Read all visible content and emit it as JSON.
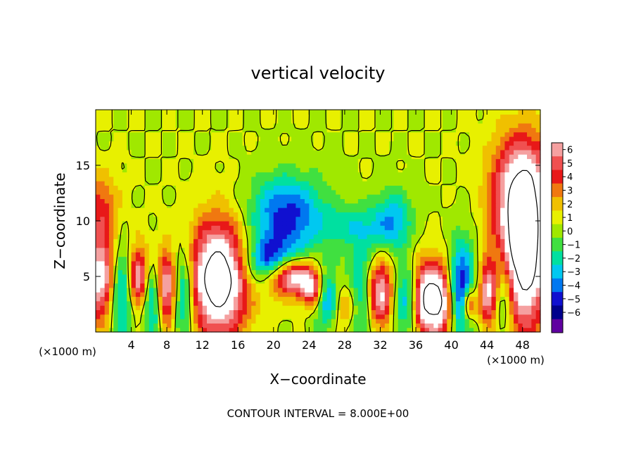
{
  "chart_data": {
    "type": "heatmap",
    "title": "vertical velocity",
    "xlabel": "X−coordinate",
    "ylabel": "Z−coordinate",
    "x_unit_left": "(×1000 m)",
    "x_unit_right": "(×1000 m)",
    "footer": "CONTOUR INTERVAL = 8.000E+00",
    "xlim": [
      0,
      50
    ],
    "ylim": [
      0,
      20
    ],
    "x_ticks": [
      4,
      8,
      12,
      16,
      20,
      24,
      28,
      32,
      36,
      40,
      44,
      48
    ],
    "y_ticks": [
      5,
      10,
      15
    ],
    "colorbar": {
      "levels": [
        6,
        5,
        4,
        3,
        2,
        1,
        0,
        -1,
        -2,
        -3,
        -4,
        -5,
        -6
      ],
      "labels": [
        "6",
        "5",
        "4",
        "3",
        "2",
        "1",
        "0",
        "−1",
        "−2",
        "−3",
        "−4",
        "−5",
        "−6"
      ],
      "colors": [
        "#f5a0a0",
        "#f05050",
        "#e81818",
        "#f07810",
        "#f0c000",
        "#e8f000",
        "#a0e800",
        "#40e040",
        "#00e0a0",
        "#00c8f0",
        "#0078f0",
        "#1010d0",
        "#00008c",
        "#6000a0"
      ]
    },
    "features": [
      {
        "x": 0.8,
        "z": 5.0,
        "sign": 1,
        "amp": 7.5,
        "sx": 1.4,
        "sz": 3.0
      },
      {
        "x": 2.8,
        "z": 4.0,
        "sign": -1,
        "amp": 6.0,
        "sx": 1.1,
        "sz": 3.0
      },
      {
        "x": 4.8,
        "z": 4.8,
        "sign": 1,
        "amp": 7.0,
        "sx": 0.9,
        "sz": 2.2
      },
      {
        "x": 6.5,
        "z": 3.0,
        "sign": -1,
        "amp": 6.0,
        "sx": 0.9,
        "sz": 2.5
      },
      {
        "x": 7.8,
        "z": 3.8,
        "sign": 1,
        "amp": 7.5,
        "sx": 0.9,
        "sz": 2.5
      },
      {
        "x": 9.8,
        "z": 3.5,
        "sign": -1,
        "amp": 5.0,
        "sx": 0.9,
        "sz": 3.0
      },
      {
        "x": 13.8,
        "z": 4.8,
        "sign": 1,
        "amp": 10.0,
        "sx": 2.3,
        "sz": 3.6
      },
      {
        "x": 19.5,
        "z": 6.3,
        "sign": -1,
        "amp": 5.5,
        "sx": 2.0,
        "sz": 1.5
      },
      {
        "x": 21.8,
        "z": 5.0,
        "sign": 1,
        "amp": 8.0,
        "sx": 1.8,
        "sz": 1.2
      },
      {
        "x": 21.5,
        "z": 10.5,
        "sign": -1,
        "amp": 5.5,
        "sx": 3.0,
        "sz": 2.5
      },
      {
        "x": 24.5,
        "z": 3.8,
        "sign": 1,
        "amp": 7.0,
        "sx": 0.9,
        "sz": 1.3
      },
      {
        "x": 25.8,
        "z": 3.2,
        "sign": -1,
        "amp": 5.5,
        "sx": 1.2,
        "sz": 1.8
      },
      {
        "x": 28.0,
        "z": 2.5,
        "sign": 1,
        "amp": 3.5,
        "sx": 1.0,
        "sz": 1.5
      },
      {
        "x": 30.2,
        "z": 3.5,
        "sign": -1,
        "amp": 5.5,
        "sx": 1.2,
        "sz": 2.8
      },
      {
        "x": 31.8,
        "z": 3.5,
        "sign": 1,
        "amp": 8.5,
        "sx": 1.3,
        "sz": 2.2
      },
      {
        "x": 34.5,
        "z": 3.0,
        "sign": -1,
        "amp": 4.0,
        "sx": 1.2,
        "sz": 2.2
      },
      {
        "x": 37.0,
        "z": 3.0,
        "sign": 1,
        "amp": 8.0,
        "sx": 0.9,
        "sz": 2.3
      },
      {
        "x": 38.8,
        "z": 2.8,
        "sign": 1,
        "amp": 8.0,
        "sx": 0.9,
        "sz": 2.3
      },
      {
        "x": 41.2,
        "z": 4.0,
        "sign": -1,
        "amp": 6.0,
        "sx": 1.1,
        "sz": 3.0
      },
      {
        "x": 42.0,
        "z": 2.5,
        "sign": 1,
        "amp": 6.5,
        "sx": 0.5,
        "sz": 1.0
      },
      {
        "x": 44.2,
        "z": 3.5,
        "sign": 1,
        "amp": 6.5,
        "sx": 0.8,
        "sz": 2.0
      },
      {
        "x": 45.8,
        "z": 3.5,
        "sign": -1,
        "amp": 5.0,
        "sx": 1.0,
        "sz": 2.8
      },
      {
        "x": 48.0,
        "z": 7.5,
        "sign": 1,
        "amp": 11.0,
        "sx": 2.0,
        "sz": 5.0
      },
      {
        "x": 48.0,
        "z": 14.0,
        "sign": 1,
        "amp": 4.0,
        "sx": 2.5,
        "sz": 3.0
      },
      {
        "x": 0.5,
        "z": 11.5,
        "sign": 1,
        "amp": 3.0,
        "sx": 1.5,
        "sz": 2.0
      },
      {
        "x": 29.5,
        "z": 9.5,
        "sign": -1,
        "amp": 2.5,
        "sx": 2.5,
        "sz": 1.5
      },
      {
        "x": 33.5,
        "z": 10.0,
        "sign": -1,
        "amp": 3.5,
        "sx": 1.5,
        "sz": 2.0
      }
    ]
  }
}
